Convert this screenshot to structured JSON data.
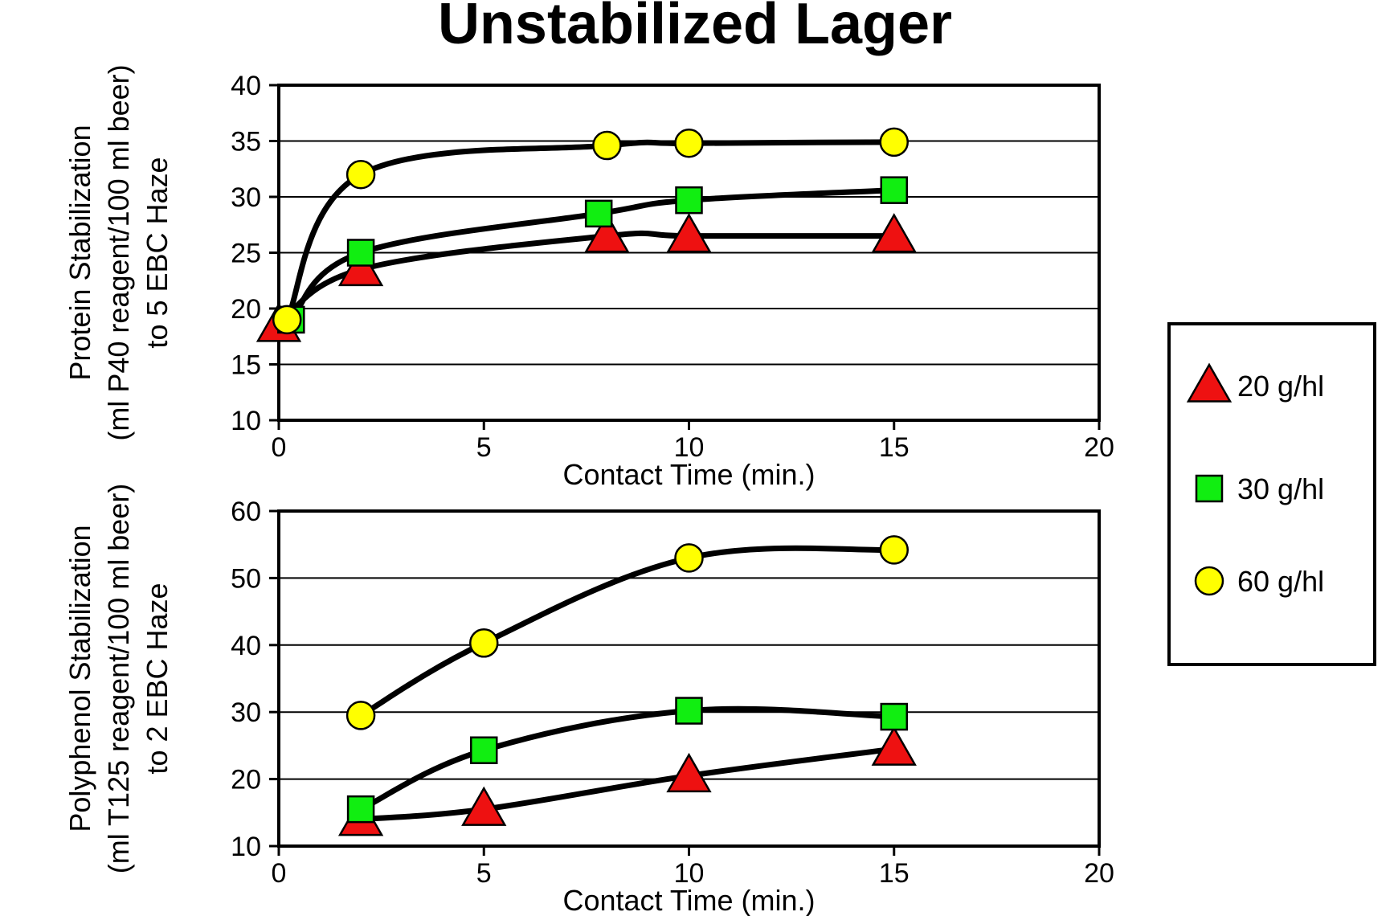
{
  "title": "Unstabilized  Lager",
  "legend": {
    "entries": [
      {
        "name": "20 g/hl",
        "marker": "triangle",
        "color": "#ee1111"
      },
      {
        "name": "30 g/hl",
        "marker": "square",
        "color": "#11ee11"
      },
      {
        "name": "60 g/hl",
        "marker": "circle",
        "color": "#ffff00"
      }
    ]
  },
  "chart_data": [
    {
      "type": "line",
      "title": "",
      "xlabel": "Contact Time (min.)",
      "ylabel": [
        "Protein Stabilization",
        "(ml P40 reagent/100 ml beer)",
        "to 5 EBC Haze"
      ],
      "xlim": [
        0,
        20
      ],
      "ylim": [
        10,
        40
      ],
      "xticks": [
        0,
        5,
        10,
        15,
        20
      ],
      "yticks": [
        10,
        15,
        20,
        25,
        30,
        35,
        40
      ],
      "grid": "horizontal",
      "series": [
        {
          "name": "20 g/hl",
          "marker": "triangle",
          "x": [
            0,
            2,
            8,
            10,
            15
          ],
          "y": [
            18.5,
            23.5,
            26.5,
            26.5,
            26.5
          ]
        },
        {
          "name": "30 g/hl",
          "marker": "square",
          "x": [
            0.3,
            2,
            7.8,
            10,
            15
          ],
          "y": [
            19,
            25,
            28.5,
            29.7,
            30.6
          ]
        },
        {
          "name": "60 g/hl",
          "marker": "circle",
          "x": [
            0.2,
            2,
            8,
            10,
            15
          ],
          "y": [
            19,
            32,
            34.6,
            34.8,
            34.9
          ]
        }
      ]
    },
    {
      "type": "line",
      "title": "",
      "xlabel": "Contact Time (min.)",
      "ylabel": [
        "Polyphenol Stabilization",
        "(ml T125 reagent/100 ml beer)",
        "to 2 EBC Haze"
      ],
      "xlim": [
        0,
        20
      ],
      "ylim": [
        10,
        60
      ],
      "xticks": [
        0,
        5,
        10,
        15,
        20
      ],
      "yticks": [
        10,
        20,
        30,
        40,
        50,
        60
      ],
      "grid": "horizontal",
      "series": [
        {
          "name": "20 g/hl",
          "marker": "triangle",
          "x": [
            2,
            5,
            10,
            15
          ],
          "y": [
            14,
            15.5,
            20.5,
            24.5
          ]
        },
        {
          "name": "30 g/hl",
          "marker": "square",
          "x": [
            2,
            5,
            10,
            15
          ],
          "y": [
            15.5,
            24.3,
            30.2,
            29.3
          ]
        },
        {
          "name": "60 g/hl",
          "marker": "circle",
          "x": [
            2,
            5,
            10,
            15
          ],
          "y": [
            29.5,
            40.3,
            53,
            54.2
          ]
        }
      ]
    }
  ]
}
